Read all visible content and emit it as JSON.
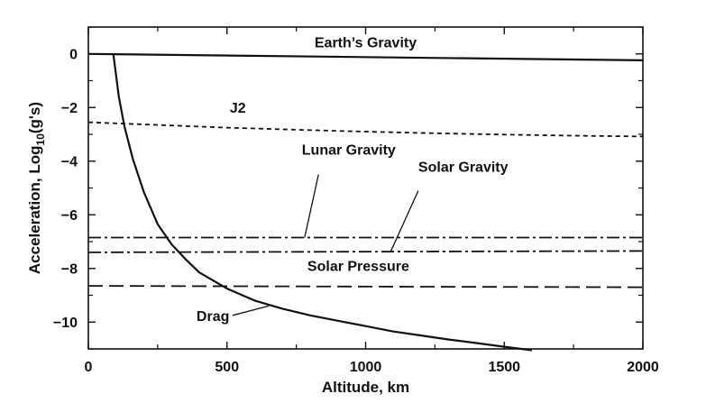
{
  "chart_data": {
    "type": "line",
    "title": "",
    "xlabel": "Altitude, km",
    "ylabel_main": "Acceleration, Log",
    "ylabel_sub": "10",
    "ylabel_tail": "(g's)",
    "xlim": [
      0,
      2000
    ],
    "ylim": [
      -11,
      1
    ],
    "x_ticks": [
      0,
      500,
      1000,
      1500,
      2000
    ],
    "y_ticks": [
      0,
      -2,
      -4,
      -6,
      -8,
      -10
    ],
    "grid": false,
    "series": [
      {
        "name": "Earth’s Gravity",
        "style": "solid",
        "x": [
          0,
          2000
        ],
        "y": [
          0,
          -0.24
        ]
      },
      {
        "name": "J2",
        "style": "dashed-short",
        "x": [
          0,
          250,
          500,
          750,
          1000,
          1250,
          1500,
          1750,
          2000
        ],
        "y": [
          -2.55,
          -2.65,
          -2.75,
          -2.83,
          -2.9,
          -2.96,
          -3.01,
          -3.05,
          -3.08
        ]
      },
      {
        "name": "Lunar Gravity",
        "style": "dash-dot",
        "x": [
          0,
          2000
        ],
        "y": [
          -6.85,
          -6.85
        ]
      },
      {
        "name": "Solar Gravity",
        "style": "dash-dot",
        "x": [
          0,
          2000
        ],
        "y": [
          -7.4,
          -7.35
        ]
      },
      {
        "name": "Solar Pressure",
        "style": "dashed-long",
        "x": [
          0,
          2000
        ],
        "y": [
          -8.65,
          -8.7
        ]
      },
      {
        "name": "Drag",
        "style": "solid",
        "x": [
          90,
          110,
          130,
          160,
          200,
          250,
          300,
          350,
          400,
          500,
          600,
          700,
          800,
          900,
          1000,
          1100,
          1200,
          1300,
          1400,
          1500,
          1600
        ],
        "y": [
          0,
          -1.6,
          -2.7,
          -3.9,
          -5.15,
          -6.35,
          -7.1,
          -7.65,
          -8.15,
          -8.75,
          -9.2,
          -9.5,
          -9.75,
          -9.95,
          -10.15,
          -10.35,
          -10.5,
          -10.65,
          -10.78,
          -10.92,
          -11.05
        ]
      }
    ],
    "annotations": [
      {
        "text": "Earth’s Gravity",
        "x": 1000,
        "y": 0.25,
        "anchor": "middle"
      },
      {
        "text": "J2",
        "x": 510,
        "y": -2.2,
        "anchor": "start"
      },
      {
        "text": "Lunar Gravity",
        "x": 770,
        "y": -3.75,
        "anchor": "start"
      },
      {
        "text": "Solar Gravity",
        "x": 1190,
        "y": -4.4,
        "anchor": "start"
      },
      {
        "text": "Solar Pressure",
        "x": 790,
        "y": -8.1,
        "anchor": "start"
      },
      {
        "text": "Drag",
        "x": 390,
        "y": -9.95,
        "anchor": "start"
      }
    ],
    "leaders": [
      {
        "from": [
          830,
          -4.5
        ],
        "to": [
          780,
          -6.85
        ]
      },
      {
        "from": [
          1190,
          -5.1
        ],
        "to": [
          1090,
          -7.38
        ]
      },
      {
        "from": [
          520,
          -9.75
        ],
        "to": [
          650,
          -9.4
        ]
      }
    ]
  }
}
